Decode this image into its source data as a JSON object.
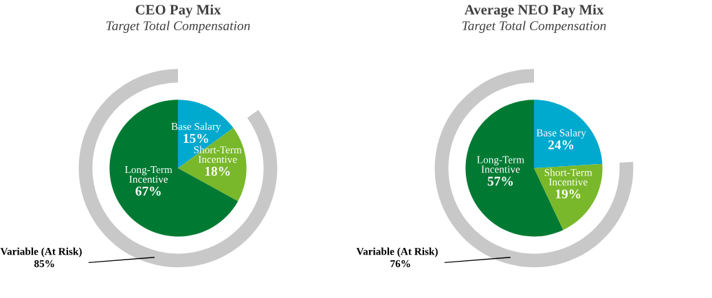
{
  "chart_data": [
    {
      "type": "pie",
      "title": "CEO Pay Mix",
      "subtitle": "Target Total Compensation",
      "categories": [
        "Base Salary",
        "Short-Term Incentive",
        "Long-Term Incentive"
      ],
      "values": [
        15,
        18,
        67
      ],
      "value_labels": [
        "15%",
        "18%",
        "67%"
      ],
      "colors": [
        "#00a9ce",
        "#78b82a",
        "#007a33"
      ]
    },
    {
      "type": "pie",
      "categories": [
        "Variable (At Risk)"
      ],
      "values": [
        85
      ],
      "value_labels": [
        "85%"
      ],
      "colors": [
        "#c8c8c8"
      ]
    },
    {
      "type": "pie",
      "title": "Average NEO Pay Mix",
      "subtitle": "Target Total Compensation",
      "categories": [
        "Base Salary",
        "Short-Term Incentive",
        "Long-Term Incentive"
      ],
      "values": [
        24,
        19,
        57
      ],
      "value_labels": [
        "24%",
        "19%",
        "57%"
      ],
      "colors": [
        "#00a9ce",
        "#78b82a",
        "#007a33"
      ]
    },
    {
      "type": "pie",
      "categories": [
        "Variable (At Risk)"
      ],
      "values": [
        76
      ],
      "value_labels": [
        "76%"
      ],
      "colors": [
        "#c8c8c8"
      ]
    }
  ]
}
